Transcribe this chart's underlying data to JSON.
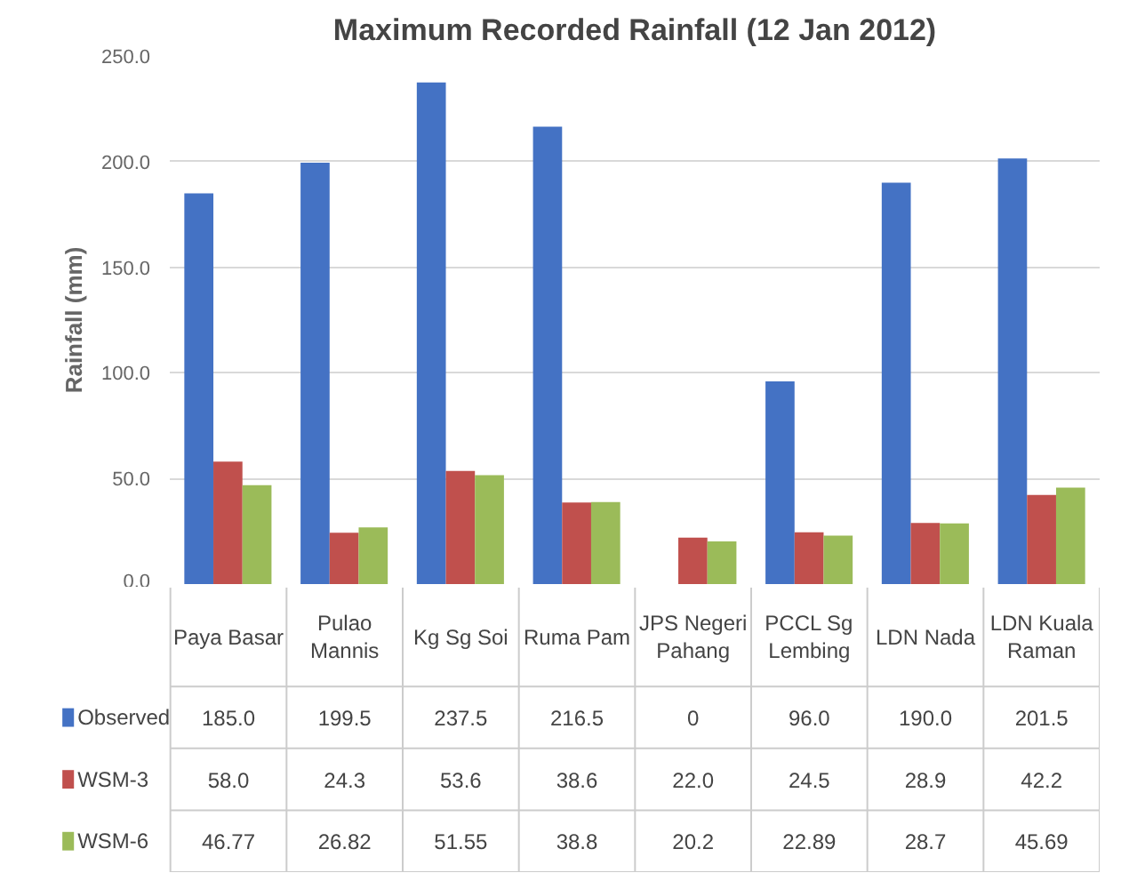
{
  "chart_data": {
    "type": "bar",
    "title": "Maximum Recorded Rainfall (12 Jan 2012)",
    "ylabel": "Rainfall (mm)",
    "categories": [
      "Paya Basar",
      "Pulao Mannis",
      "Kg Sg Soi",
      "Ruma Pam",
      "JPS Negeri Pahang",
      "PCCL  Sg Lembing",
      "LDN Nada",
      "LDN Kuala Raman"
    ],
    "series": [
      {
        "name": "Observed",
        "color": "#4472c4",
        "values": [
          185.0,
          199.5,
          237.5,
          216.5,
          0,
          96.0,
          190.0,
          201.5
        ],
        "value_labels": [
          "185.0",
          "199.5",
          "237.5",
          "216.5",
          "0",
          "96.0",
          "190.0",
          "201.5"
        ]
      },
      {
        "name": "WSM-3",
        "color": "#c0504d",
        "values": [
          58.0,
          24.3,
          53.6,
          38.6,
          22.0,
          24.5,
          28.9,
          42.2
        ],
        "value_labels": [
          "58.0",
          "24.3",
          "53.6",
          "38.6",
          "22.0",
          "24.5",
          "28.9",
          "42.2"
        ]
      },
      {
        "name": "WSM-6",
        "color": "#9bbb59",
        "values": [
          46.77,
          26.82,
          51.55,
          38.8,
          20.2,
          22.89,
          28.7,
          45.69
        ],
        "value_labels": [
          "46.77",
          "26.82",
          "51.55",
          "38.8",
          "20.2",
          "22.89",
          "28.7",
          "45.69"
        ]
      }
    ],
    "ylim": [
      0,
      250
    ],
    "yticks": [
      {
        "value": 0,
        "label": "0.0"
      },
      {
        "value": 50,
        "label": "50.0"
      },
      {
        "value": 100,
        "label": "100.0"
      },
      {
        "value": 150,
        "label": "150.0"
      },
      {
        "value": 200,
        "label": "200.0"
      },
      {
        "value": 250,
        "label": "250.0"
      }
    ],
    "grid": "y",
    "legend": "bottom left"
  }
}
